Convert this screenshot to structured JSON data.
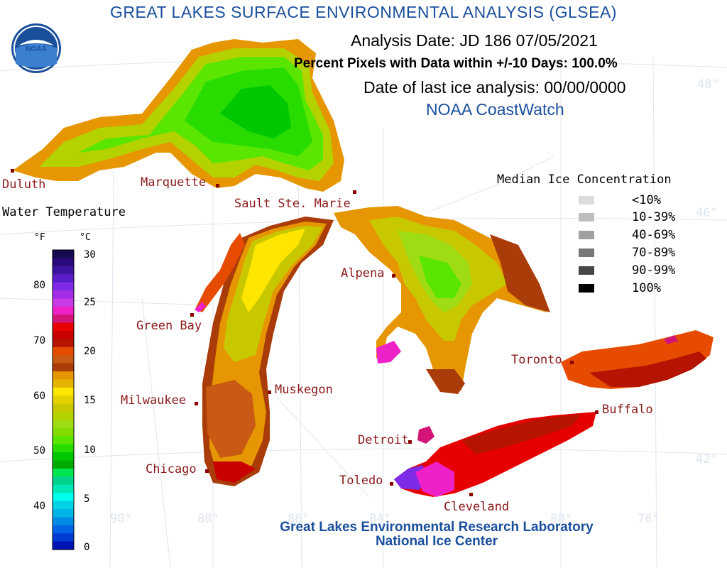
{
  "title": "GREAT LAKES SURFACE ENVIRONMENTAL ANALYSIS (GLSEA)",
  "header": {
    "analysis_date": "Analysis Date:  JD 186 07/05/2021",
    "percent_pixels": "Percent Pixels with Data within +/-10 Days: 100.0%",
    "last_ice": "Date of last ice analysis: 00/00/0000",
    "source": "NOAA CoastWatch"
  },
  "logo_text": "NOAA",
  "footer": {
    "line1": "Great Lakes Environmental Research Laboratory",
    "line2": "National Ice Center"
  },
  "colors": {
    "title": "#1a4f9c",
    "city_label": "#8b1a1a",
    "city_dot": "#8b0000",
    "grid": "#dfe6ef"
  },
  "water_temperature_legend": {
    "title": "Water Temperature",
    "unit_f": "°F",
    "unit_c": "°C",
    "f_ticks": [
      "80",
      "70",
      "60",
      "50",
      "40"
    ],
    "c_ticks": [
      "30",
      "25",
      "20",
      "15",
      "10",
      "5",
      "0"
    ],
    "swatches": [
      "#140a50",
      "#2a0a78",
      "#3c14a0",
      "#5a1ec8",
      "#7d2be6",
      "#a52ce6",
      "#c83ce6",
      "#ee20c8",
      "#d41478",
      "#e60000",
      "#c80000",
      "#b41400",
      "#e64b00",
      "#c85a14",
      "#aa3c0a",
      "#e69600",
      "#e6b400",
      "#ffe600",
      "#e6d200",
      "#c8c800",
      "#b4d200",
      "#a0dc14",
      "#82dc00",
      "#5ae600",
      "#28dc00",
      "#00c800",
      "#00aa00",
      "#00e650",
      "#00d28c",
      "#00e6b4",
      "#00fff0",
      "#00d2e6",
      "#00b4e6",
      "#008ce6",
      "#0064e6",
      "#003cd2",
      "#0014b4"
    ]
  },
  "ice_legend": {
    "title": "Median Ice Concentration",
    "items": [
      {
        "label": "<10%",
        "color": "#dcdcdc"
      },
      {
        "label": "10-39%",
        "color": "#bebebe"
      },
      {
        "label": "40-69%",
        "color": "#a0a0a0"
      },
      {
        "label": "70-89%",
        "color": "#787878"
      },
      {
        "label": "90-99%",
        "color": "#464646"
      },
      {
        "label": "100%",
        "color": "#000000"
      }
    ]
  },
  "cities": [
    "Duluth",
    "Marquette",
    "Sault Ste. Marie",
    "Green Bay",
    "Alpena",
    "Milwaukee",
    "Muskegon",
    "Chicago",
    "Detroit",
    "Toledo",
    "Cleveland",
    "Toronto",
    "Buffalo"
  ],
  "grid_labels": {
    "latitudes": [
      "48°",
      "46°",
      "42°"
    ],
    "longitudes": [
      "90°",
      "88°",
      "86°",
      "84°",
      "80°",
      "78°"
    ]
  },
  "lakes": [
    "Lake Superior",
    "Lake Michigan",
    "Lake Huron",
    "Lake Erie",
    "Lake Ontario"
  ]
}
